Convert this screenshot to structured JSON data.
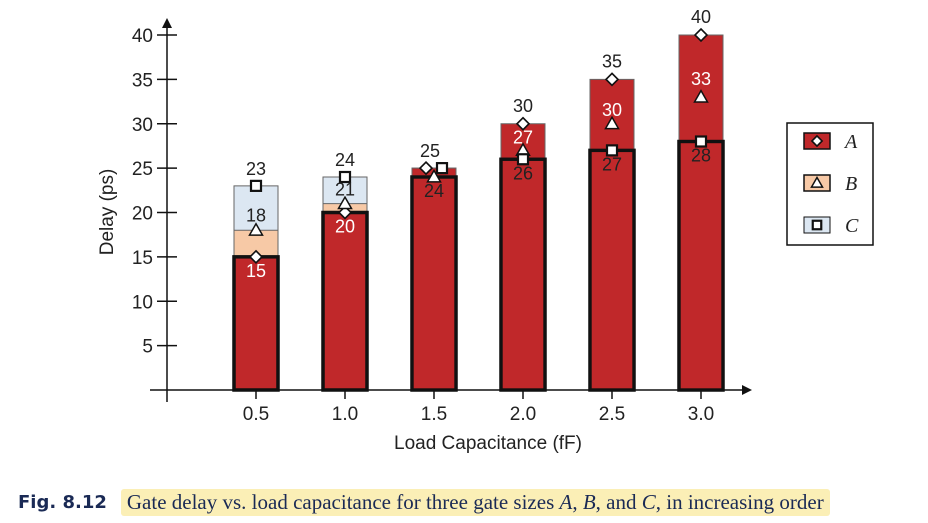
{
  "chart_data": {
    "type": "bar",
    "title": "",
    "xlabel": "Load Capacitance (fF)",
    "ylabel": "Delay (ps)",
    "ylim": [
      0,
      40
    ],
    "yticks": [
      5,
      10,
      15,
      20,
      25,
      30,
      35,
      40
    ],
    "categories": [
      "0.5",
      "1.0",
      "1.5",
      "2.0",
      "2.5",
      "3.0"
    ],
    "series": [
      {
        "name": "A",
        "values": [
          15,
          20,
          25,
          30,
          35,
          40
        ],
        "color": "#c0282a",
        "marker": "diamond"
      },
      {
        "name": "B",
        "values": [
          18,
          21,
          24,
          27,
          30,
          33
        ],
        "color": "#f7c9a6",
        "marker": "triangle"
      },
      {
        "name": "C",
        "values": [
          23,
          24,
          25,
          26,
          27,
          28
        ],
        "color": "#dce7f2",
        "marker": "square"
      }
    ],
    "best_series": [
      "A",
      "A",
      "B",
      "C",
      "C",
      "C"
    ],
    "legend": "right",
    "grid": false
  },
  "caption": {
    "label": "Fig. 8.12",
    "text_parts": [
      {
        "t": "Gate delay vs. load capacitance for three gate sizes ",
        "i": false
      },
      {
        "t": "A",
        "i": true
      },
      {
        "t": ", ",
        "i": false
      },
      {
        "t": "B",
        "i": true
      },
      {
        "t": ", and ",
        "i": false
      },
      {
        "t": "C",
        "i": true
      },
      {
        "t": ", in increasing order",
        "i": false
      }
    ]
  }
}
